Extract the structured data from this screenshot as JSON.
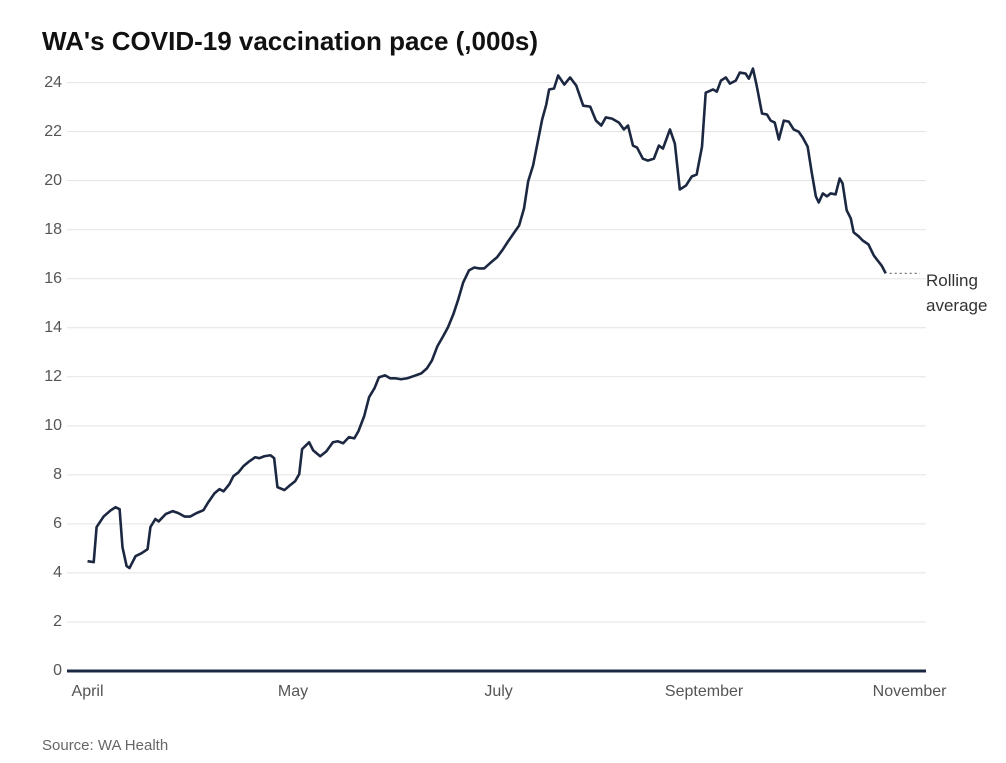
{
  "chart_data": {
    "type": "line",
    "title": "WA's COVID-19 vaccination pace (,000s)",
    "source": "Source: WA Health",
    "annotation": "Rolling average",
    "xlim": [
      -5,
      204
    ],
    "xticks": [
      {
        "value": 0,
        "label": "April"
      },
      {
        "value": 50,
        "label": "May"
      },
      {
        "value": 100,
        "label": "July"
      },
      {
        "value": 150,
        "label": "September"
      },
      {
        "value": 200,
        "label": "November"
      }
    ],
    "ylim": [
      0,
      24.8
    ],
    "yticks": [
      0,
      2,
      4,
      6,
      8,
      10,
      12,
      14,
      16,
      18,
      20,
      22,
      24
    ],
    "grid": true,
    "x": [
      0,
      1.5,
      2.2,
      3.9,
      5.6,
      6.8,
      7.8,
      8.5,
      9.5,
      10.2,
      11.7,
      13.1,
      14.6,
      15.3,
      16.5,
      17.3,
      19,
      20.7,
      22.1,
      23.6,
      25,
      26.5,
      28.2,
      29.4,
      30.9,
      32.1,
      33.1,
      34.5,
      35.5,
      36.7,
      37.9,
      39.4,
      40.8,
      41.8,
      43,
      44.5,
      45.4,
      46.2,
      47.9,
      49.3,
      50.5,
      51.5,
      52.2,
      53.9,
      54.9,
      56.6,
      58.1,
      59.7,
      60.9,
      62.2,
      63.6,
      64.9,
      65.9,
      67.3,
      68.5,
      69.8,
      70.9,
      72.4,
      73.6,
      74.8,
      76.3,
      77.8,
      79.2,
      81.2,
      82.6,
      83.8,
      85.1,
      86.5,
      87.7,
      89,
      90.2,
      91.4,
      92.8,
      94.1,
      95.3,
      96.5,
      97.9,
      99.6,
      100.9,
      102.3,
      103.5,
      105,
      106.2,
      107.2,
      108.4,
      109.4,
      110.6,
      111.6,
      112.3,
      113.5,
      114.5,
      116,
      117.4,
      118.9,
      120.6,
      122.3,
      123.7,
      125,
      126.1,
      127.6,
      129.3,
      130.5,
      131.5,
      132.7,
      133.7,
      135.1,
      136.3,
      137.8,
      139,
      140,
      141.7,
      142.9,
      144.1,
      145.6,
      147,
      148.2,
      149.5,
      150.4,
      152.2,
      153.1,
      154.1,
      155.3,
      156.3,
      157.7,
      158.7,
      160.1,
      160.9,
      161.9,
      162.8,
      164.1,
      165.3,
      166.2,
      167.2,
      168.2,
      169.4,
      170.6,
      171.8,
      173,
      174,
      175.2,
      176.2,
      177.2,
      177.9,
      178.9,
      179.9,
      180.8,
      182,
      183,
      183.7,
      184.7,
      185.7,
      186.4,
      187.6,
      188.6,
      190,
      191.3,
      192.2,
      193.2,
      194.2
    ],
    "series": [
      {
        "name": "Rolling average",
        "color": "#1c2841",
        "values": [
          4.48,
          4.44,
          5.87,
          6.3,
          6.55,
          6.68,
          6.6,
          5.05,
          4.28,
          4.2,
          4.69,
          4.8,
          4.97,
          5.87,
          6.2,
          6.1,
          6.4,
          6.52,
          6.44,
          6.3,
          6.3,
          6.44,
          6.56,
          6.89,
          7.25,
          7.42,
          7.33,
          7.62,
          7.95,
          8.1,
          8.35,
          8.56,
          8.72,
          8.68,
          8.76,
          8.8,
          8.68,
          7.5,
          7.38,
          7.58,
          7.74,
          8.03,
          9.05,
          9.33,
          9.0,
          8.76,
          8.96,
          9.33,
          9.37,
          9.29,
          9.54,
          9.49,
          9.78,
          10.39,
          11.17,
          11.53,
          11.98,
          12.06,
          11.94,
          11.94,
          11.9,
          11.94,
          12.02,
          12.14,
          12.35,
          12.67,
          13.24,
          13.65,
          14.02,
          14.55,
          15.16,
          15.85,
          16.34,
          16.46,
          16.42,
          16.42,
          16.63,
          16.87,
          17.16,
          17.52,
          17.81,
          18.17,
          18.87,
          19.97,
          20.62,
          21.47,
          22.49,
          23.1,
          23.72,
          23.76,
          24.29,
          23.92,
          24.21,
          23.88,
          23.06,
          23.02,
          22.45,
          22.25,
          22.58,
          22.53,
          22.37,
          22.09,
          22.25,
          21.43,
          21.35,
          20.9,
          20.82,
          20.9,
          21.43,
          21.31,
          22.09,
          21.51,
          19.64,
          19.8,
          20.17,
          20.25,
          21.39,
          23.59,
          23.72,
          23.63,
          24.08,
          24.21,
          23.96,
          24.08,
          24.41,
          24.37,
          24.16,
          24.57,
          23.88,
          22.74,
          22.7,
          22.45,
          22.37,
          21.68,
          22.45,
          22.41,
          22.09,
          22.0,
          21.76,
          21.39,
          20.33,
          19.36,
          19.11,
          19.48,
          19.36,
          19.48,
          19.44,
          20.09,
          19.89,
          18.79,
          18.46,
          17.89,
          17.73,
          17.56,
          17.4,
          16.95,
          16.75,
          16.54,
          16.22
        ]
      }
    ]
  }
}
